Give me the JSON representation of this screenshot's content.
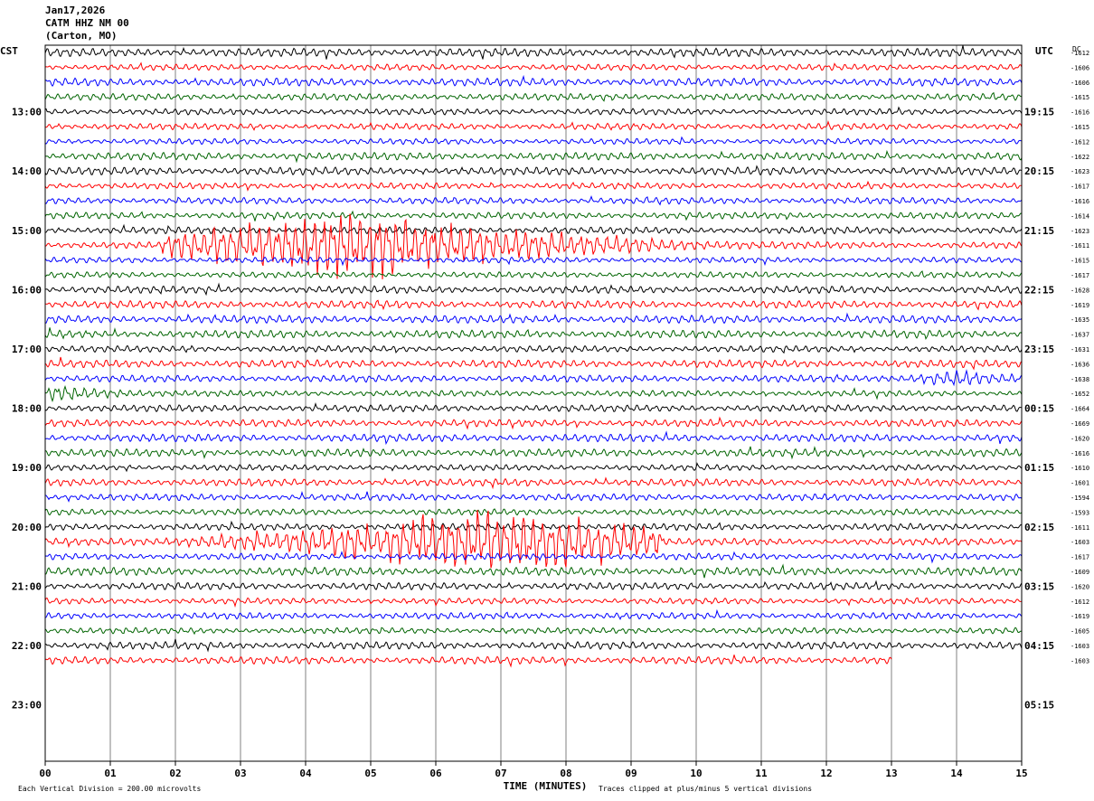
{
  "header": {
    "date": "Jan17,2026",
    "station": "CATM HHZ NM 00",
    "location": "(Carton, MO)"
  },
  "colors": {
    "traces": [
      "#000000",
      "#ff0000",
      "#0000ff",
      "#006400"
    ],
    "grid": "#808080"
  },
  "chart_data": {
    "type": "line",
    "title": "",
    "xlabel": "TIME (MINUTES)",
    "ylabel": "",
    "left_axis_label": "CST",
    "right_axis_label": "UTC",
    "dc_label": "DC",
    "x_ticks": [
      "00",
      "01",
      "02",
      "03",
      "04",
      "05",
      "06",
      "07",
      "08",
      "09",
      "10",
      "11",
      "12",
      "13",
      "14",
      "15"
    ],
    "xlim": [
      0,
      15
    ],
    "left_hours": [
      "13:00",
      "14:00",
      "15:00",
      "16:00",
      "17:00",
      "18:00",
      "19:00",
      "20:00",
      "21:00",
      "22:00",
      "23:00"
    ],
    "right_hours": [
      "19:15",
      "20:15",
      "21:15",
      "22:15",
      "23:15",
      "00:15",
      "01:15",
      "02:15",
      "03:15",
      "04:15",
      "05:15"
    ],
    "dc_offsets": [
      "-1612",
      "-1606",
      "-1606",
      "-1615",
      "-1616",
      "-1615",
      "-1612",
      "-1622",
      "-1623",
      "-1617",
      "-1616",
      "-1614",
      "-1623",
      "-1611",
      "-1615",
      "-1617",
      "-1628",
      "-1619",
      "-1635",
      "-1637",
      "-1631",
      "-1636",
      "-1638",
      "-1652",
      "-1664",
      "-1669",
      "-1620",
      "-1616",
      "-1610",
      "-1601",
      "-1594",
      "-1593",
      "-1611",
      "-1603",
      "-1617",
      "-1609",
      "-1620",
      "-1612",
      "-1619",
      "-1605",
      "-1603",
      "-1603"
    ],
    "rows_per_hour": 4,
    "last_row_end_minute": 13,
    "events": [
      {
        "row": 13,
        "start_min": 1.8,
        "end_min": 12.5,
        "peak_min": 4.7
      },
      {
        "row": 33,
        "start_min": 0.0,
        "end_min": 9.5,
        "peak_min": 7.0
      },
      {
        "row": 23,
        "start_min": 0.0,
        "end_min": 2.5,
        "peak_min": 0.2
      },
      {
        "row": 22,
        "start_min": 12.5,
        "end_min": 15.0,
        "peak_min": 14.0
      }
    ],
    "footer_left": "Each Vertical Division =  200.00 microvolts",
    "footer_right": "Traces clipped at plus/minus 5 vertical divisions"
  }
}
